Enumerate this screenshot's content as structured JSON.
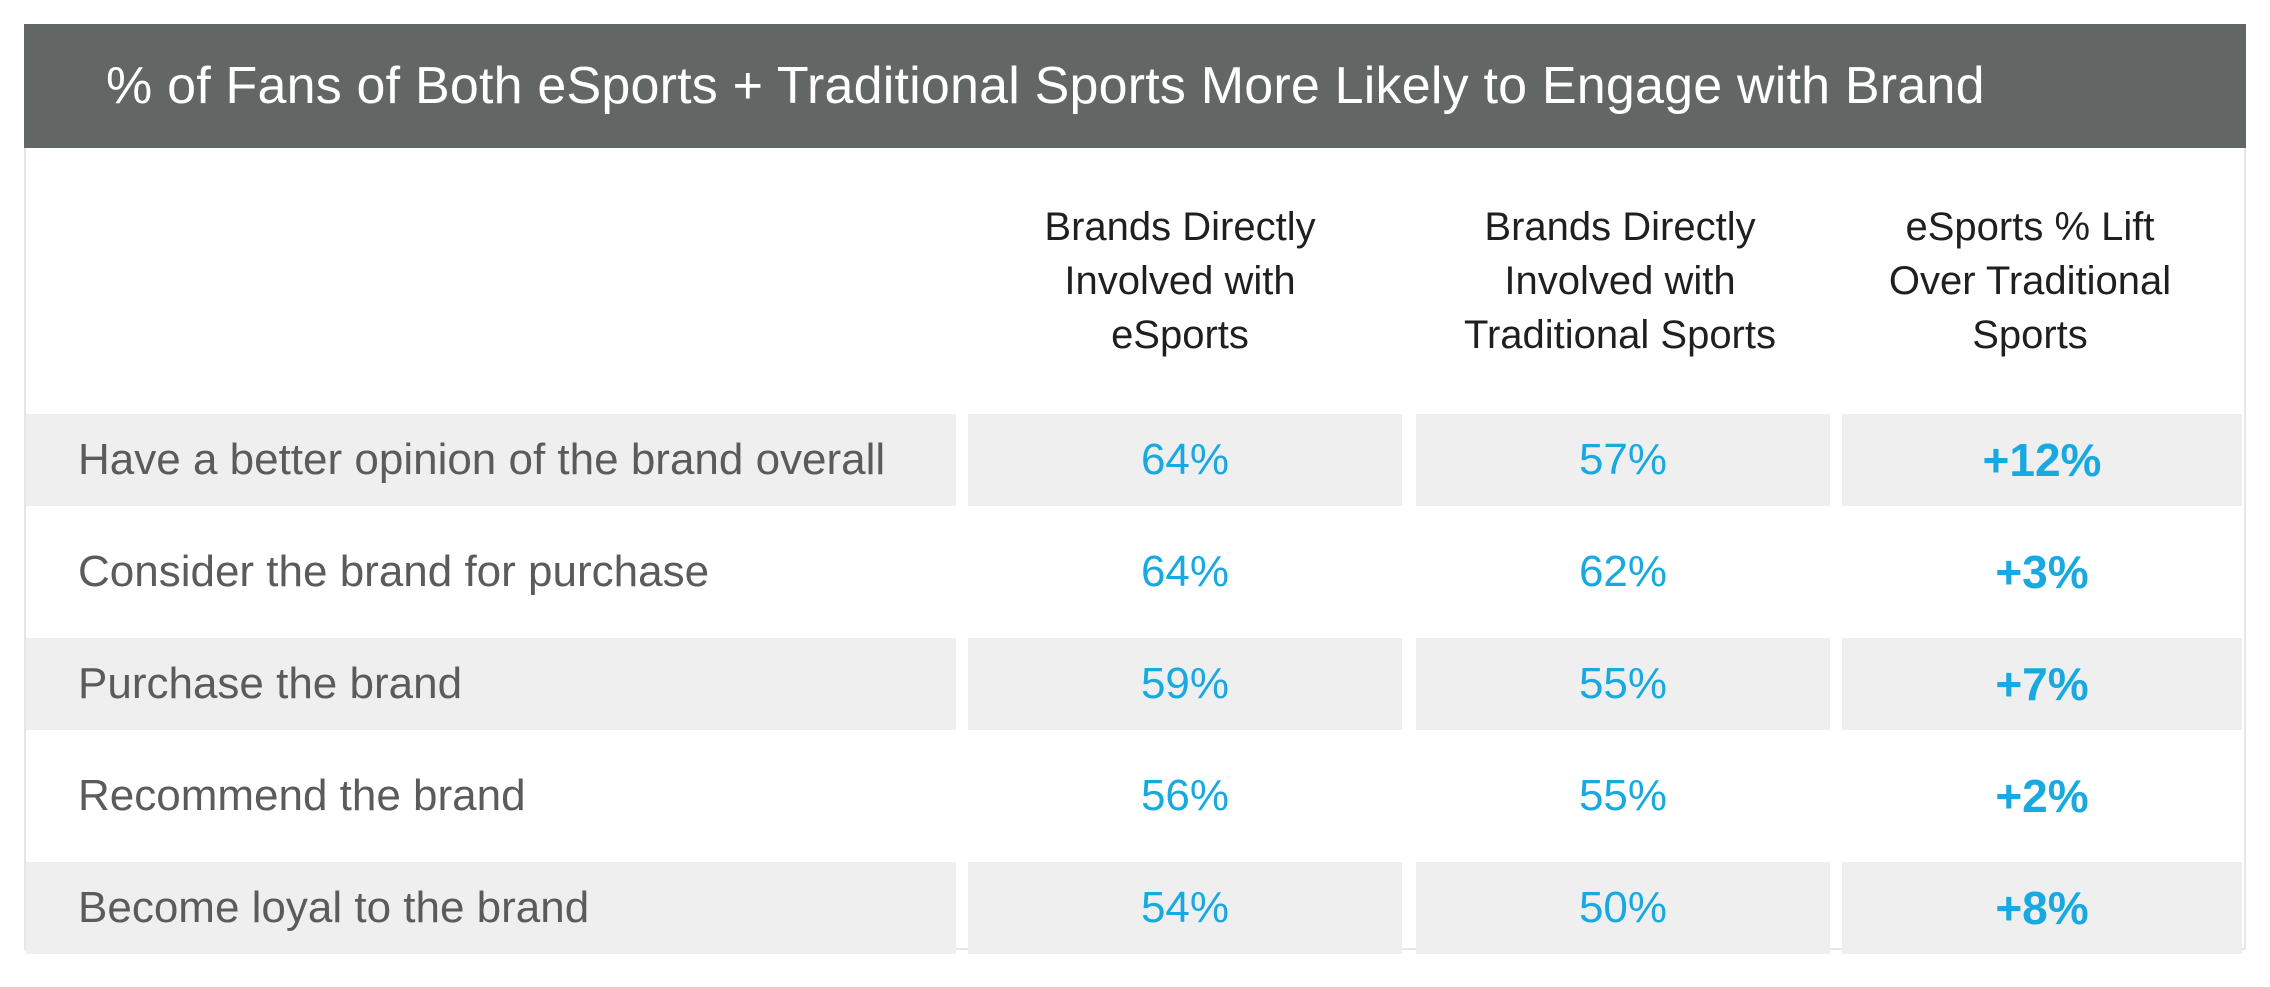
{
  "title": "% of Fans of Both eSports + Traditional Sports More Likely to Engage with Brand",
  "chart_data": {
    "type": "table",
    "title": "% of Fans of Both eSports + Traditional Sports More Likely to Engage with Brand",
    "columns": [
      "Brands Directly Involved with eSports",
      "Brands Directly Involved with Traditional Sports",
      "eSports % Lift Over Traditional Sports"
    ],
    "rows": [
      {
        "label": "Have a better opinion of the brand overall",
        "esports": "64%",
        "traditional": "57%",
        "lift": "+12%"
      },
      {
        "label": "Consider the brand for purchase",
        "esports": "64%",
        "traditional": "62%",
        "lift": "+3%"
      },
      {
        "label": "Purchase the brand",
        "esports": "59%",
        "traditional": "55%",
        "lift": "+7%"
      },
      {
        "label": "Recommend the brand",
        "esports": "56%",
        "traditional": "55%",
        "lift": "+2%"
      },
      {
        "label": "Become loyal to the brand",
        "esports": "54%",
        "traditional": "50%",
        "lift": "+8%"
      }
    ]
  },
  "header_lines": {
    "esports": "Brands Directly\nInvolved with\neSports",
    "traditional": "Brands Directly\nInvolved with\nTraditional Sports",
    "lift": "eSports % Lift\nOver Traditional\nSports"
  },
  "colors": {
    "title_bar": "#626665",
    "value_blue": "#18a9e1",
    "row_shade": "#efefef",
    "label_gray": "#5b5b5b"
  }
}
